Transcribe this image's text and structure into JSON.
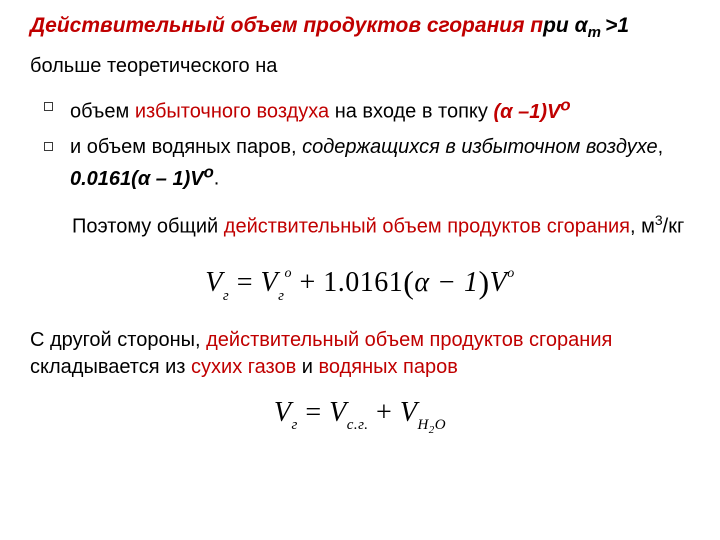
{
  "title_red": "Действительный объем продуктов сгорания п",
  "title_black_1": "ри α",
  "title_sub": "т ",
  "title_black_2": ">1",
  "subline": "больше теоретического на",
  "bullet1_a": "объем ",
  "bullet1_b": "избыточного воздуха",
  "bullet1_c": " на входе в топку   ",
  "bullet1_formula_pre": "(α –1)V",
  "bullet1_formula_sup": "о",
  "bullet2_a": "и объем водяных паров, ",
  "bullet2_b": "содержащихся в избыточном воздухе",
  "bullet2_c": ",     ",
  "bullet2_formula_pre": "0.0161(α – 1)V",
  "bullet2_formula_sup": "о",
  "bullet2_dot": ".",
  "para1_a": "Поэтому общий ",
  "para1_b": "действительный объем продуктов сгорания",
  "para1_c": ", м",
  "para1_sup": "3",
  "para1_d": "/кг",
  "eq1_V": "V",
  "eq1_sub1": "г",
  "eq1_eq": " = ",
  "eq1_V2": "V",
  "eq1_sub2": "г",
  "eq1_sup2": "о",
  "eq1_plus": " + 1.0161",
  "eq1_lp": "(",
  "eq1_alpha": "α − 1",
  "eq1_rp": ")",
  "eq1_V3": "V",
  "eq1_sup3": "о",
  "para2_a": "С другой стороны, ",
  "para2_b": "действительный объем продуктов сгорания",
  "para2_c": " складывается из ",
  "para2_d": "сухих газов",
  "para2_e": " и ",
  "para2_f": "водяных паров",
  "eq2_V": "V",
  "eq2_sub1": "г",
  "eq2_eq": " = ",
  "eq2_V2": "V",
  "eq2_sub2": "с.г.",
  "eq2_plus": " + ",
  "eq2_V3": "V",
  "eq2_sub3_a": "H",
  "eq2_sub3_b": "2",
  "eq2_sub3_c": "O"
}
